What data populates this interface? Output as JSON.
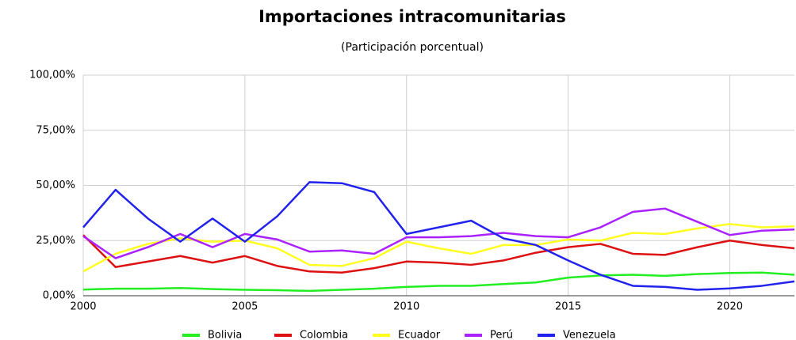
{
  "chart_data": {
    "type": "line",
    "title": "Importaciones intracomunitarias",
    "subtitle": "(Participación porcentual)",
    "x": [
      2000,
      2001,
      2002,
      2003,
      2004,
      2005,
      2006,
      2007,
      2008,
      2009,
      2010,
      2011,
      2012,
      2013,
      2014,
      2015,
      2016,
      2017,
      2018,
      2019,
      2020,
      2021,
      2022
    ],
    "xlim": [
      2000,
      2022
    ],
    "xticks": [
      2000,
      2005,
      2010,
      2015,
      2020
    ],
    "ylim": [
      0,
      100
    ],
    "yticks": [
      {
        "value": 0,
        "label": "0,00%"
      },
      {
        "value": 25,
        "label": "25,00%"
      },
      {
        "value": 50,
        "label": "50,00%"
      },
      {
        "value": 75,
        "label": "75,00%"
      },
      {
        "value": 100,
        "label": "100,00%"
      }
    ],
    "grid": true,
    "legend": "bottom",
    "series": [
      {
        "name": "Bolivia",
        "color": "#22ee22",
        "values": [
          2.8,
          3.2,
          3.2,
          3.5,
          3,
          2.7,
          2.5,
          2.2,
          2.7,
          3.2,
          4,
          4.5,
          4.5,
          5.3,
          6,
          8.2,
          9.2,
          9.5,
          9,
          9.8,
          10.3,
          10.5,
          9.5
        ]
      },
      {
        "name": "Colombia",
        "color": "#dd1111",
        "values": [
          27.5,
          13,
          15.5,
          18,
          15,
          18,
          13.5,
          11,
          10.5,
          12.5,
          15.5,
          15,
          14,
          16,
          19.5,
          22,
          23.5,
          19,
          18.5,
          22,
          25,
          23,
          21.5
        ]
      },
      {
        "name": "Ecuador",
        "color": "#ffff22",
        "values": [
          11,
          19,
          23.5,
          26,
          24.5,
          25,
          21.5,
          14,
          13.5,
          17,
          24.5,
          21.5,
          19,
          23,
          23,
          25.5,
          25,
          28.5,
          28,
          30.5,
          32.5,
          31,
          31.5
        ]
      },
      {
        "name": "Perú",
        "color": "#aa22ff",
        "values": [
          27,
          17,
          22,
          28,
          22,
          28,
          25.5,
          20,
          20.5,
          19,
          26.5,
          26.5,
          27,
          28.5,
          27,
          26.5,
          31,
          38,
          39.5,
          33.5,
          27.5,
          29.5,
          30
        ]
      },
      {
        "name": "Venezuela",
        "color": "#2222ee",
        "values": [
          31,
          48,
          35,
          24.5,
          35,
          24.5,
          36,
          51.5,
          51,
          47,
          28,
          31,
          34,
          26,
          23,
          16,
          9.5,
          4.5,
          4,
          2.7,
          3.3,
          4.5,
          6.5
        ]
      }
    ]
  }
}
